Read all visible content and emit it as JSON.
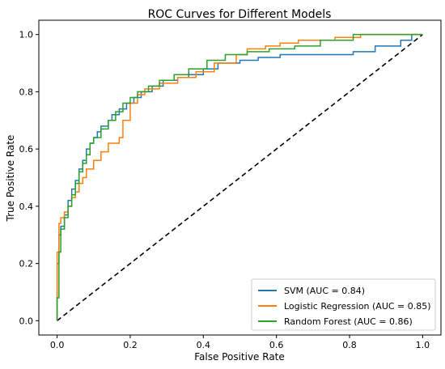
{
  "chart_data": {
    "type": "line",
    "title": "ROC Curves for Different Models",
    "xlabel": "False Positive Rate",
    "ylabel": "True Positive Rate",
    "xlim": [
      -0.05,
      1.05
    ],
    "ylim": [
      -0.05,
      1.05
    ],
    "xticks": [
      0.0,
      0.2,
      0.4,
      0.6,
      0.8,
      1.0
    ],
    "yticks": [
      0.0,
      0.2,
      0.4,
      0.6,
      0.8,
      1.0
    ],
    "tick_labels_x": [
      "0.0",
      "0.2",
      "0.4",
      "0.6",
      "0.8",
      "1.0"
    ],
    "tick_labels_y": [
      "0.0",
      "0.2",
      "0.4",
      "0.6",
      "0.8",
      "1.0"
    ],
    "grid": false,
    "legend_position": "lower-right",
    "diagonal": {
      "x": [
        0,
        1
      ],
      "y": [
        0,
        1
      ],
      "color": "#000000",
      "style": "dashed"
    },
    "series": [
      {
        "name": "SVM (AUC = 0.84)",
        "color": "#1f77b4",
        "x": [
          0.0,
          0.0,
          0.005,
          0.005,
          0.01,
          0.01,
          0.02,
          0.02,
          0.03,
          0.03,
          0.04,
          0.04,
          0.05,
          0.05,
          0.06,
          0.06,
          0.07,
          0.07,
          0.08,
          0.08,
          0.09,
          0.09,
          0.1,
          0.1,
          0.11,
          0.11,
          0.12,
          0.12,
          0.14,
          0.14,
          0.15,
          0.15,
          0.17,
          0.17,
          0.19,
          0.19,
          0.21,
          0.21,
          0.23,
          0.23,
          0.26,
          0.26,
          0.29,
          0.29,
          0.33,
          0.33,
          0.36,
          0.36,
          0.4,
          0.4,
          0.44,
          0.44,
          0.5,
          0.5,
          0.55,
          0.55,
          0.61,
          0.61,
          0.67,
          0.67,
          0.71,
          0.71,
          0.81,
          0.81,
          0.87,
          0.87,
          0.94,
          0.94,
          0.97,
          0.97,
          1.0
        ],
        "y": [
          0.0,
          0.2,
          0.2,
          0.3,
          0.3,
          0.33,
          0.33,
          0.37,
          0.37,
          0.42,
          0.42,
          0.46,
          0.46,
          0.49,
          0.49,
          0.53,
          0.53,
          0.56,
          0.56,
          0.6,
          0.6,
          0.62,
          0.62,
          0.64,
          0.64,
          0.66,
          0.66,
          0.68,
          0.68,
          0.7,
          0.7,
          0.72,
          0.72,
          0.74,
          0.74,
          0.76,
          0.76,
          0.78,
          0.78,
          0.8,
          0.8,
          0.82,
          0.82,
          0.84,
          0.84,
          0.85,
          0.85,
          0.86,
          0.86,
          0.88,
          0.88,
          0.9,
          0.9,
          0.91,
          0.91,
          0.92,
          0.92,
          0.93,
          0.93,
          0.93,
          0.93,
          0.93,
          0.93,
          0.94,
          0.94,
          0.96,
          0.96,
          0.98,
          0.98,
          1.0,
          1.0
        ]
      },
      {
        "name": "Logistic Regression (AUC = 0.85)",
        "color": "#ff7f0e",
        "x": [
          0.0,
          0.0,
          0.005,
          0.005,
          0.01,
          0.01,
          0.02,
          0.02,
          0.03,
          0.03,
          0.04,
          0.04,
          0.05,
          0.05,
          0.06,
          0.06,
          0.07,
          0.07,
          0.08,
          0.08,
          0.1,
          0.1,
          0.12,
          0.12,
          0.14,
          0.14,
          0.17,
          0.17,
          0.18,
          0.18,
          0.2,
          0.2,
          0.22,
          0.22,
          0.24,
          0.24,
          0.28,
          0.28,
          0.33,
          0.33,
          0.38,
          0.38,
          0.43,
          0.43,
          0.49,
          0.49,
          0.52,
          0.52,
          0.57,
          0.57,
          0.61,
          0.61,
          0.66,
          0.66,
          0.76,
          0.76,
          0.83,
          0.83,
          0.88,
          0.88,
          0.93,
          0.93,
          0.97,
          0.97,
          1.0
        ],
        "y": [
          0.0,
          0.24,
          0.24,
          0.34,
          0.34,
          0.36,
          0.36,
          0.38,
          0.38,
          0.4,
          0.4,
          0.43,
          0.43,
          0.45,
          0.45,
          0.48,
          0.48,
          0.5,
          0.5,
          0.53,
          0.53,
          0.56,
          0.56,
          0.59,
          0.59,
          0.62,
          0.62,
          0.64,
          0.64,
          0.7,
          0.7,
          0.76,
          0.76,
          0.79,
          0.79,
          0.81,
          0.81,
          0.83,
          0.83,
          0.85,
          0.85,
          0.87,
          0.87,
          0.9,
          0.9,
          0.93,
          0.93,
          0.95,
          0.95,
          0.96,
          0.96,
          0.97,
          0.97,
          0.98,
          0.98,
          0.99,
          0.99,
          1.0,
          1.0,
          1.0,
          1.0,
          1.0,
          1.0,
          1.0,
          1.0
        ]
      },
      {
        "name": "Random Forest (AUC = 0.86)",
        "color": "#2ca02c",
        "x": [
          0.0,
          0.0,
          0.005,
          0.005,
          0.01,
          0.01,
          0.02,
          0.02,
          0.03,
          0.03,
          0.04,
          0.04,
          0.05,
          0.05,
          0.06,
          0.06,
          0.07,
          0.07,
          0.08,
          0.08,
          0.09,
          0.09,
          0.1,
          0.1,
          0.12,
          0.12,
          0.14,
          0.14,
          0.16,
          0.16,
          0.18,
          0.18,
          0.2,
          0.2,
          0.22,
          0.22,
          0.25,
          0.25,
          0.28,
          0.28,
          0.32,
          0.32,
          0.36,
          0.36,
          0.41,
          0.41,
          0.46,
          0.46,
          0.52,
          0.52,
          0.58,
          0.58,
          0.65,
          0.65,
          0.72,
          0.72,
          0.81,
          0.81,
          0.87,
          0.87,
          1.0
        ],
        "y": [
          0.0,
          0.08,
          0.08,
          0.24,
          0.24,
          0.32,
          0.32,
          0.36,
          0.36,
          0.4,
          0.4,
          0.44,
          0.44,
          0.48,
          0.48,
          0.52,
          0.52,
          0.55,
          0.55,
          0.58,
          0.58,
          0.62,
          0.62,
          0.64,
          0.64,
          0.67,
          0.67,
          0.7,
          0.7,
          0.73,
          0.73,
          0.76,
          0.76,
          0.78,
          0.78,
          0.8,
          0.8,
          0.82,
          0.82,
          0.84,
          0.84,
          0.86,
          0.86,
          0.88,
          0.88,
          0.91,
          0.91,
          0.93,
          0.93,
          0.94,
          0.94,
          0.95,
          0.95,
          0.96,
          0.96,
          0.98,
          0.98,
          1.0,
          1.0,
          1.0,
          1.0
        ]
      }
    ]
  }
}
